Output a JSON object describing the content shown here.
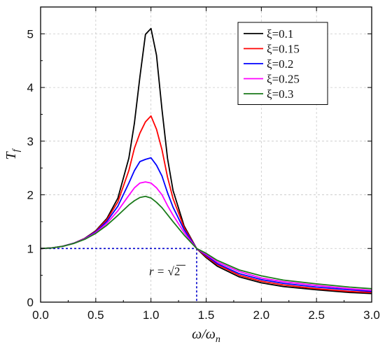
{
  "chart_data": {
    "type": "line",
    "title": "",
    "xlabel": "ω/ω",
    "xlabel_sub": "n",
    "ylabel": "T",
    "ylabel_sub": "f",
    "xlim": [
      0.0,
      3.0
    ],
    "ylim": [
      0,
      5.5
    ],
    "xticks": [
      "0.0",
      "0.5",
      "1.0",
      "1.5",
      "2.0",
      "2.5",
      "3.0"
    ],
    "yticks": [
      "0",
      "1",
      "2",
      "3",
      "4",
      "5"
    ],
    "grid": true,
    "legend_position": "top-right",
    "x": [
      0.0,
      0.1,
      0.2,
      0.3,
      0.4,
      0.5,
      0.6,
      0.7,
      0.8,
      0.85,
      0.9,
      0.95,
      1.0,
      1.05,
      1.1,
      1.15,
      1.2,
      1.3,
      1.414,
      1.5,
      1.6,
      1.8,
      2.0,
      2.2,
      2.5,
      2.8,
      3.0
    ],
    "series": [
      {
        "name": "ξ=0.1",
        "color": "#000000",
        "values": [
          1.0,
          1.01,
          1.042,
          1.098,
          1.189,
          1.331,
          1.558,
          1.938,
          2.685,
          3.334,
          4.2,
          4.99,
          5.1,
          4.6,
          3.59,
          2.68,
          2.08,
          1.42,
          1.0,
          0.83,
          0.67,
          0.47,
          0.36,
          0.29,
          0.23,
          0.18,
          0.16
        ]
      },
      {
        "name": "ξ=0.15",
        "color": "#ff0000",
        "values": [
          1.0,
          1.01,
          1.042,
          1.097,
          1.186,
          1.322,
          1.534,
          1.868,
          2.454,
          2.866,
          3.15,
          3.36,
          3.47,
          3.22,
          2.84,
          2.33,
          1.93,
          1.39,
          1.0,
          0.85,
          0.7,
          0.5,
          0.39,
          0.32,
          0.25,
          0.2,
          0.18
        ]
      },
      {
        "name": "ξ=0.2",
        "color": "#0000ff",
        "values": [
          1.0,
          1.01,
          1.042,
          1.097,
          1.182,
          1.31,
          1.504,
          1.788,
          2.22,
          2.45,
          2.62,
          2.66,
          2.69,
          2.55,
          2.35,
          2.04,
          1.77,
          1.35,
          1.0,
          0.87,
          0.72,
          0.53,
          0.42,
          0.35,
          0.28,
          0.23,
          0.2
        ]
      },
      {
        "name": "ξ=0.25",
        "color": "#ff00ff",
        "values": [
          1.0,
          1.01,
          1.041,
          1.095,
          1.177,
          1.296,
          1.469,
          1.702,
          1.99,
          2.13,
          2.22,
          2.24,
          2.22,
          2.13,
          2.0,
          1.8,
          1.62,
          1.3,
          1.0,
          0.89,
          0.75,
          0.57,
          0.45,
          0.38,
          0.31,
          0.25,
          0.22
        ]
      },
      {
        "name": "ξ=0.3",
        "color": "#1a7a1a",
        "values": [
          1.0,
          1.01,
          1.04,
          1.093,
          1.171,
          1.281,
          1.432,
          1.617,
          1.81,
          1.89,
          1.95,
          1.97,
          1.94,
          1.86,
          1.76,
          1.63,
          1.5,
          1.25,
          1.0,
          0.91,
          0.78,
          0.6,
          0.49,
          0.41,
          0.34,
          0.28,
          0.25
        ]
      }
    ],
    "annotation": {
      "text_prefix": "r = ",
      "text_radical": "√2",
      "x": 1.414,
      "y": 1.0,
      "color": "#0000cc"
    }
  }
}
